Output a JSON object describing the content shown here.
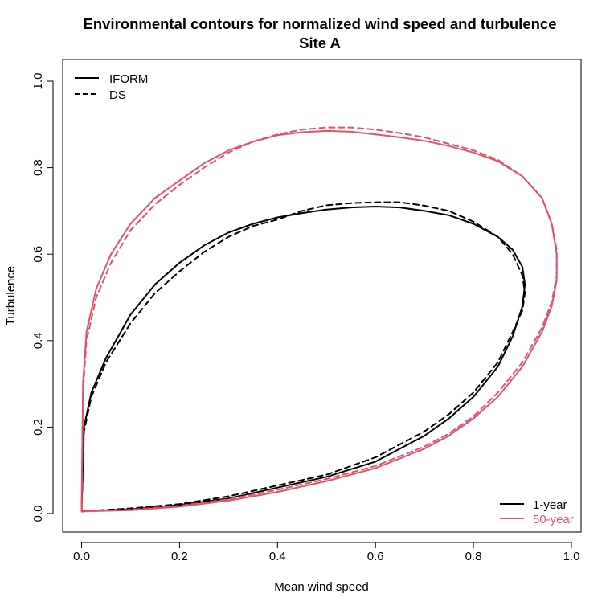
{
  "chart_data": {
    "type": "line",
    "title": "Environmental contours for normalized wind speed and turbulence",
    "subtitle": "Site A",
    "xlabel": "Mean wind speed",
    "ylabel": "Turbulence",
    "xlim": [
      0,
      1
    ],
    "ylim": [
      0,
      1
    ],
    "x_ticks": [
      "0.0",
      "0.2",
      "0.4",
      "0.6",
      "0.8",
      "1.0"
    ],
    "y_ticks": [
      "0.0",
      "0.2",
      "0.4",
      "0.6",
      "0.8",
      "1.0"
    ],
    "grid": false,
    "colors": {
      "1-year": "#000000",
      "50-year": "#DF536B"
    },
    "legend_method": {
      "placement": "top-left",
      "entries": [
        {
          "label": "IFORM",
          "line": "solid"
        },
        {
          "label": "DS",
          "line": "dashed"
        }
      ]
    },
    "legend_period": {
      "placement": "bottom-right",
      "entries": [
        {
          "label": "1-year",
          "color": "#000000"
        },
        {
          "label": "50-year",
          "color": "#DF536B"
        }
      ]
    },
    "series": [
      {
        "period": "1-year",
        "method": "IFORM",
        "color": "#000000",
        "line": "solid",
        "points": [
          [
            0.0,
            0.005
          ],
          [
            0.005,
            0.2
          ],
          [
            0.02,
            0.28
          ],
          [
            0.05,
            0.36
          ],
          [
            0.1,
            0.46
          ],
          [
            0.15,
            0.53
          ],
          [
            0.2,
            0.58
          ],
          [
            0.25,
            0.62
          ],
          [
            0.3,
            0.65
          ],
          [
            0.35,
            0.67
          ],
          [
            0.4,
            0.685
          ],
          [
            0.45,
            0.695
          ],
          [
            0.5,
            0.703
          ],
          [
            0.55,
            0.708
          ],
          [
            0.6,
            0.71
          ],
          [
            0.65,
            0.708
          ],
          [
            0.7,
            0.7
          ],
          [
            0.75,
            0.69
          ],
          [
            0.8,
            0.67
          ],
          [
            0.85,
            0.64
          ],
          [
            0.88,
            0.61
          ],
          [
            0.9,
            0.57
          ],
          [
            0.905,
            0.53
          ],
          [
            0.9,
            0.48
          ],
          [
            0.88,
            0.41
          ],
          [
            0.85,
            0.34
          ],
          [
            0.8,
            0.27
          ],
          [
            0.75,
            0.22
          ],
          [
            0.7,
            0.18
          ],
          [
            0.65,
            0.15
          ],
          [
            0.6,
            0.12
          ],
          [
            0.5,
            0.085
          ],
          [
            0.4,
            0.06
          ],
          [
            0.3,
            0.035
          ],
          [
            0.2,
            0.02
          ],
          [
            0.1,
            0.01
          ],
          [
            0.0,
            0.005
          ]
        ]
      },
      {
        "period": "1-year",
        "method": "DS",
        "color": "#000000",
        "line": "dashed",
        "points": [
          [
            0.0,
            0.005
          ],
          [
            0.005,
            0.19
          ],
          [
            0.02,
            0.27
          ],
          [
            0.05,
            0.35
          ],
          [
            0.1,
            0.44
          ],
          [
            0.15,
            0.51
          ],
          [
            0.2,
            0.56
          ],
          [
            0.25,
            0.605
          ],
          [
            0.3,
            0.64
          ],
          [
            0.35,
            0.665
          ],
          [
            0.4,
            0.68
          ],
          [
            0.45,
            0.7
          ],
          [
            0.5,
            0.713
          ],
          [
            0.55,
            0.718
          ],
          [
            0.6,
            0.72
          ],
          [
            0.65,
            0.72
          ],
          [
            0.7,
            0.712
          ],
          [
            0.75,
            0.7
          ],
          [
            0.8,
            0.675
          ],
          [
            0.85,
            0.64
          ],
          [
            0.88,
            0.6
          ],
          [
            0.9,
            0.55
          ],
          [
            0.905,
            0.51
          ],
          [
            0.9,
            0.47
          ],
          [
            0.88,
            0.42
          ],
          [
            0.85,
            0.35
          ],
          [
            0.8,
            0.28
          ],
          [
            0.75,
            0.23
          ],
          [
            0.7,
            0.19
          ],
          [
            0.65,
            0.16
          ],
          [
            0.6,
            0.13
          ],
          [
            0.5,
            0.09
          ],
          [
            0.4,
            0.065
          ],
          [
            0.3,
            0.04
          ],
          [
            0.2,
            0.022
          ],
          [
            0.1,
            0.012
          ],
          [
            0.0,
            0.005
          ]
        ]
      },
      {
        "period": "50-year",
        "method": "IFORM",
        "color": "#DF536B",
        "line": "solid",
        "points": [
          [
            0.0,
            0.005
          ],
          [
            0.003,
            0.3
          ],
          [
            0.01,
            0.42
          ],
          [
            0.03,
            0.52
          ],
          [
            0.06,
            0.6
          ],
          [
            0.1,
            0.67
          ],
          [
            0.15,
            0.73
          ],
          [
            0.2,
            0.77
          ],
          [
            0.25,
            0.81
          ],
          [
            0.3,
            0.84
          ],
          [
            0.35,
            0.86
          ],
          [
            0.4,
            0.875
          ],
          [
            0.45,
            0.882
          ],
          [
            0.5,
            0.885
          ],
          [
            0.55,
            0.883
          ],
          [
            0.6,
            0.877
          ],
          [
            0.65,
            0.87
          ],
          [
            0.7,
            0.862
          ],
          [
            0.75,
            0.85
          ],
          [
            0.8,
            0.835
          ],
          [
            0.85,
            0.815
          ],
          [
            0.9,
            0.78
          ],
          [
            0.94,
            0.73
          ],
          [
            0.96,
            0.67
          ],
          [
            0.97,
            0.6
          ],
          [
            0.97,
            0.54
          ],
          [
            0.96,
            0.48
          ],
          [
            0.94,
            0.42
          ],
          [
            0.9,
            0.34
          ],
          [
            0.85,
            0.27
          ],
          [
            0.8,
            0.22
          ],
          [
            0.75,
            0.18
          ],
          [
            0.7,
            0.15
          ],
          [
            0.6,
            0.105
          ],
          [
            0.5,
            0.075
          ],
          [
            0.4,
            0.05
          ],
          [
            0.3,
            0.03
          ],
          [
            0.2,
            0.016
          ],
          [
            0.1,
            0.008
          ],
          [
            0.0,
            0.005
          ]
        ]
      },
      {
        "period": "50-year",
        "method": "DS",
        "color": "#DF536B",
        "line": "dashed",
        "points": [
          [
            0.0,
            0.005
          ],
          [
            0.003,
            0.28
          ],
          [
            0.01,
            0.4
          ],
          [
            0.03,
            0.5
          ],
          [
            0.06,
            0.58
          ],
          [
            0.1,
            0.655
          ],
          [
            0.15,
            0.715
          ],
          [
            0.2,
            0.76
          ],
          [
            0.25,
            0.8
          ],
          [
            0.3,
            0.835
          ],
          [
            0.35,
            0.86
          ],
          [
            0.4,
            0.877
          ],
          [
            0.45,
            0.888
          ],
          [
            0.5,
            0.893
          ],
          [
            0.55,
            0.893
          ],
          [
            0.6,
            0.888
          ],
          [
            0.65,
            0.88
          ],
          [
            0.7,
            0.87
          ],
          [
            0.75,
            0.855
          ],
          [
            0.8,
            0.84
          ],
          [
            0.85,
            0.818
          ],
          [
            0.9,
            0.78
          ],
          [
            0.94,
            0.73
          ],
          [
            0.96,
            0.67
          ],
          [
            0.97,
            0.61
          ],
          [
            0.97,
            0.55
          ],
          [
            0.96,
            0.49
          ],
          [
            0.94,
            0.43
          ],
          [
            0.9,
            0.35
          ],
          [
            0.85,
            0.28
          ],
          [
            0.8,
            0.225
          ],
          [
            0.75,
            0.185
          ],
          [
            0.7,
            0.155
          ],
          [
            0.6,
            0.11
          ],
          [
            0.5,
            0.08
          ],
          [
            0.4,
            0.055
          ],
          [
            0.3,
            0.033
          ],
          [
            0.2,
            0.018
          ],
          [
            0.1,
            0.009
          ],
          [
            0.0,
            0.005
          ]
        ]
      }
    ]
  }
}
